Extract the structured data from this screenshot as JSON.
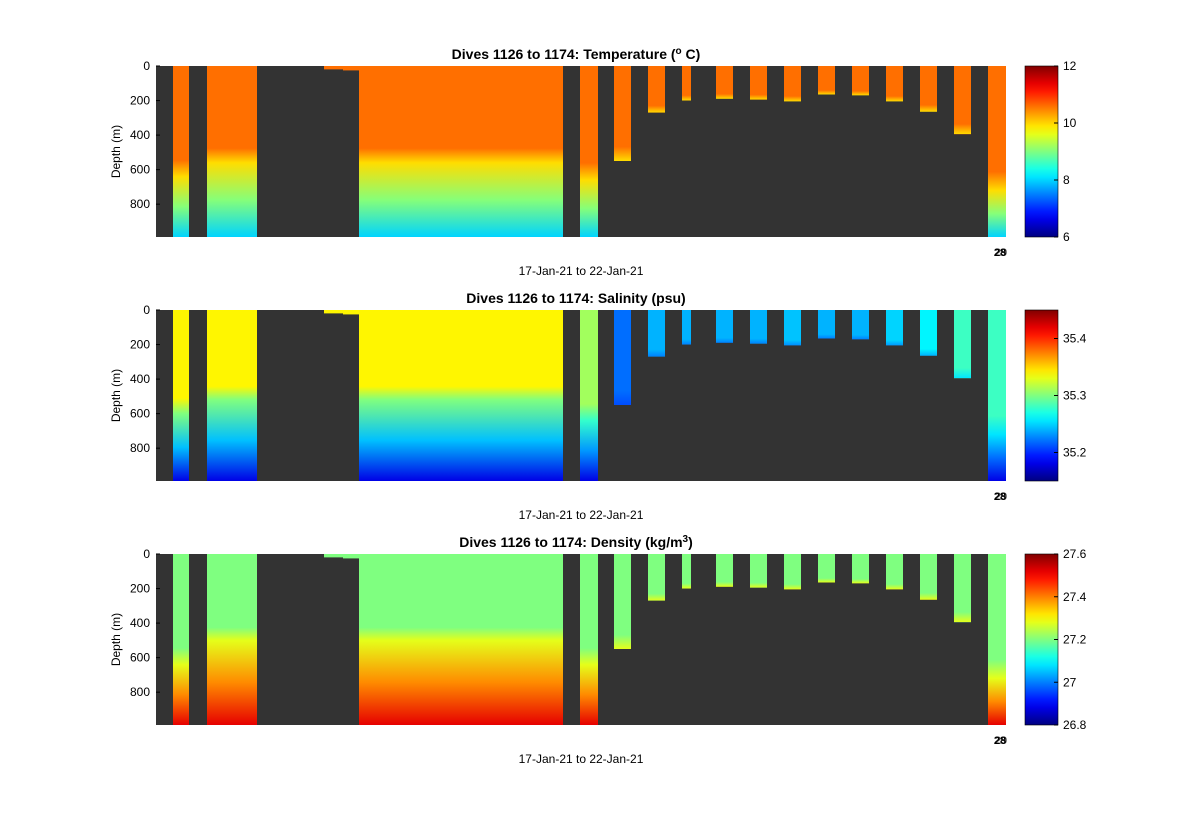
{
  "figure": {
    "background": "#ffffff",
    "axes_background": "#333333"
  },
  "chart_data": [
    {
      "type": "heatmap",
      "title": "Dives 1126 to 1174: Temperature (",
      "title_sup": "o",
      "title_tail": " C)",
      "xlabel": "17-Jan-21 to 22-Jan-21",
      "ylabel": "Depth (m)",
      "yticks": [
        "0",
        "200",
        "400",
        "600",
        "800"
      ],
      "ylim": [
        0,
        990
      ],
      "y_reversed": true,
      "x_tick_label": "28",
      "x_tick_overlap": "29",
      "colorbar": {
        "min": 6,
        "max": 12,
        "ticks": [
          "6",
          "8",
          "10",
          "12"
        ],
        "colormap": "jet"
      },
      "surface_value": 10.6,
      "bottom_value": 8.0,
      "profiles": [
        {
          "dive": 1126,
          "max_depth": 990,
          "transition_depth": 640
        },
        {
          "dive": 1127,
          "max_depth": 990,
          "transition_depth": 560
        },
        {
          "dive": 1128,
          "max_depth": 990,
          "transition_depth": 560
        },
        {
          "dive": 1129,
          "max_depth": 990,
          "transition_depth": 560
        },
        {
          "dive": 1130,
          "max_depth": 990,
          "transition_depth": 560
        },
        {
          "dive": 1131,
          "max_depth": 990,
          "transition_depth": 560
        },
        {
          "dive": 1132,
          "max_depth": 990,
          "transition_depth": 560
        },
        {
          "dive": 1133,
          "max_depth": 990,
          "transition_depth": 560
        },
        {
          "dive": 1134,
          "max_depth": 990,
          "transition_depth": 560
        },
        {
          "dive": 1135,
          "max_depth": 990,
          "transition_depth": 560
        },
        {
          "dive": 1136,
          "max_depth": 990,
          "transition_depth": 560
        },
        {
          "dive": 1137,
          "max_depth": 990,
          "transition_depth": 560
        },
        {
          "dive": 1138,
          "max_depth": 990,
          "transition_depth": 560
        },
        {
          "dive": 1139,
          "max_depth": 990,
          "transition_depth": 560
        },
        {
          "dive": 1140,
          "max_depth": 990,
          "transition_depth": 560
        },
        {
          "dive": 1141,
          "max_depth": 990,
          "transition_depth": 560
        },
        {
          "dive": 1142,
          "max_depth": 990,
          "transition_depth": 560
        },
        {
          "dive": 1143,
          "max_depth": 990,
          "transition_depth": 560
        },
        {
          "dive": 1144,
          "max_depth": 990,
          "transition_depth": 660
        },
        {
          "dive": 1145,
          "max_depth": 550,
          "transition_depth": 9999
        },
        {
          "dive": 1146,
          "max_depth": 270,
          "transition_depth": 9999
        },
        {
          "dive": 1147,
          "max_depth": 200,
          "transition_depth": 9999
        },
        {
          "dive": 1148,
          "max_depth": 190,
          "transition_depth": 9999
        },
        {
          "dive": 1149,
          "max_depth": 195,
          "transition_depth": 9999
        },
        {
          "dive": 1150,
          "max_depth": 205,
          "transition_depth": 9999
        },
        {
          "dive": 1151,
          "max_depth": 165,
          "transition_depth": 9999
        },
        {
          "dive": 1152,
          "max_depth": 170,
          "transition_depth": 9999
        },
        {
          "dive": 1153,
          "max_depth": 205,
          "transition_depth": 9999
        },
        {
          "dive": 1154,
          "max_depth": 265,
          "transition_depth": 9999
        },
        {
          "dive": 1155,
          "max_depth": 395,
          "transition_depth": 9999
        },
        {
          "dive": 1156,
          "max_depth": 990,
          "transition_depth": 720
        }
      ]
    },
    {
      "type": "heatmap",
      "title": "Dives 1126 to 1174: Salinity (psu)",
      "xlabel": "17-Jan-21 to 22-Jan-21",
      "ylabel": "Depth (m)",
      "yticks": [
        "0",
        "200",
        "400",
        "600",
        "800"
      ],
      "ylim": [
        0,
        990
      ],
      "y_reversed": true,
      "x_tick_label": "28",
      "x_tick_overlap": "29",
      "colorbar": {
        "min": 35.15,
        "max": 35.45,
        "ticks": [
          "35.2",
          "35.3",
          "35.4"
        ],
        "colormap": "jet"
      },
      "surface_value": 35.34,
      "bottom_value": 35.18,
      "profiles": [
        {
          "dive": 1126,
          "max_depth": 990,
          "transition_depth": 600,
          "surface_value": 35.34
        },
        {
          "dive": 1127,
          "max_depth": 990,
          "transition_depth": 520,
          "surface_value": 35.34
        },
        {
          "dive": 1128,
          "max_depth": 990,
          "transition_depth": 520,
          "surface_value": 35.34
        },
        {
          "dive": 1129,
          "max_depth": 990,
          "transition_depth": 520,
          "surface_value": 35.34
        },
        {
          "dive": 1130,
          "max_depth": 990,
          "transition_depth": 520,
          "surface_value": 35.34
        },
        {
          "dive": 1131,
          "max_depth": 990,
          "transition_depth": 520,
          "surface_value": 35.34
        },
        {
          "dive": 1132,
          "max_depth": 990,
          "transition_depth": 520,
          "surface_value": 35.34
        },
        {
          "dive": 1133,
          "max_depth": 990,
          "transition_depth": 520,
          "surface_value": 35.34
        },
        {
          "dive": 1134,
          "max_depth": 990,
          "transition_depth": 520,
          "surface_value": 35.34
        },
        {
          "dive": 1135,
          "max_depth": 990,
          "transition_depth": 520,
          "surface_value": 35.34
        },
        {
          "dive": 1136,
          "max_depth": 990,
          "transition_depth": 520,
          "surface_value": 35.34
        },
        {
          "dive": 1137,
          "max_depth": 990,
          "transition_depth": 520,
          "surface_value": 35.34
        },
        {
          "dive": 1138,
          "max_depth": 990,
          "transition_depth": 520,
          "surface_value": 35.34
        },
        {
          "dive": 1139,
          "max_depth": 990,
          "transition_depth": 520,
          "surface_value": 35.34
        },
        {
          "dive": 1140,
          "max_depth": 990,
          "transition_depth": 520,
          "surface_value": 35.34
        },
        {
          "dive": 1141,
          "max_depth": 990,
          "transition_depth": 520,
          "surface_value": 35.34
        },
        {
          "dive": 1142,
          "max_depth": 990,
          "transition_depth": 520,
          "surface_value": 35.34
        },
        {
          "dive": 1143,
          "max_depth": 990,
          "transition_depth": 520,
          "surface_value": 35.34
        },
        {
          "dive": 1144,
          "max_depth": 990,
          "transition_depth": 640,
          "surface_value": 35.31
        },
        {
          "dive": 1145,
          "max_depth": 550,
          "transition_depth": 9999,
          "surface_value": 35.22
        },
        {
          "dive": 1146,
          "max_depth": 270,
          "transition_depth": 9999,
          "surface_value": 35.24
        },
        {
          "dive": 1147,
          "max_depth": 200,
          "transition_depth": 9999,
          "surface_value": 35.24
        },
        {
          "dive": 1148,
          "max_depth": 190,
          "transition_depth": 9999,
          "surface_value": 35.24
        },
        {
          "dive": 1149,
          "max_depth": 195,
          "transition_depth": 9999,
          "surface_value": 35.24
        },
        {
          "dive": 1150,
          "max_depth": 205,
          "transition_depth": 9999,
          "surface_value": 35.245
        },
        {
          "dive": 1151,
          "max_depth": 165,
          "transition_depth": 9999,
          "surface_value": 35.24
        },
        {
          "dive": 1152,
          "max_depth": 170,
          "transition_depth": 9999,
          "surface_value": 35.24
        },
        {
          "dive": 1153,
          "max_depth": 205,
          "transition_depth": 9999,
          "surface_value": 35.25
        },
        {
          "dive": 1154,
          "max_depth": 265,
          "transition_depth": 9999,
          "surface_value": 35.26
        },
        {
          "dive": 1155,
          "max_depth": 395,
          "transition_depth": 9999,
          "surface_value": 35.28
        },
        {
          "dive": 1156,
          "max_depth": 990,
          "transition_depth": 720,
          "surface_value": 35.28
        }
      ]
    },
    {
      "type": "heatmap",
      "title": "Dives 1126 to 1174: Density (kg/m",
      "title_sup": "3",
      "title_tail": ")",
      "xlabel": "17-Jan-21 to 22-Jan-21",
      "ylabel": "Depth (m)",
      "yticks": [
        "0",
        "200",
        "400",
        "600",
        "800"
      ],
      "ylim": [
        0,
        990
      ],
      "y_reversed": true,
      "x_tick_label": "28",
      "x_tick_overlap": "29",
      "colorbar": {
        "min": 26.8,
        "max": 27.6,
        "ticks": [
          "26.8",
          "27",
          "27.2",
          "27.4",
          "27.6"
        ],
        "colormap": "jet"
      },
      "surface_value": 27.2,
      "bottom_value": 27.52,
      "profiles": [
        {
          "dive": 1126,
          "max_depth": 990,
          "transition_depth": 640
        },
        {
          "dive": 1127,
          "max_depth": 990,
          "transition_depth": 500
        },
        {
          "dive": 1128,
          "max_depth": 990,
          "transition_depth": 500
        },
        {
          "dive": 1129,
          "max_depth": 990,
          "transition_depth": 500
        },
        {
          "dive": 1130,
          "max_depth": 990,
          "transition_depth": 500
        },
        {
          "dive": 1131,
          "max_depth": 990,
          "transition_depth": 500
        },
        {
          "dive": 1132,
          "max_depth": 990,
          "transition_depth": 500
        },
        {
          "dive": 1133,
          "max_depth": 990,
          "transition_depth": 500
        },
        {
          "dive": 1134,
          "max_depth": 990,
          "transition_depth": 500
        },
        {
          "dive": 1135,
          "max_depth": 990,
          "transition_depth": 500
        },
        {
          "dive": 1136,
          "max_depth": 990,
          "transition_depth": 500
        },
        {
          "dive": 1137,
          "max_depth": 990,
          "transition_depth": 500
        },
        {
          "dive": 1138,
          "max_depth": 990,
          "transition_depth": 500
        },
        {
          "dive": 1139,
          "max_depth": 990,
          "transition_depth": 500
        },
        {
          "dive": 1140,
          "max_depth": 990,
          "transition_depth": 500
        },
        {
          "dive": 1141,
          "max_depth": 990,
          "transition_depth": 500
        },
        {
          "dive": 1142,
          "max_depth": 990,
          "transition_depth": 500
        },
        {
          "dive": 1143,
          "max_depth": 990,
          "transition_depth": 500
        },
        {
          "dive": 1144,
          "max_depth": 990,
          "transition_depth": 640
        },
        {
          "dive": 1145,
          "max_depth": 550,
          "transition_depth": 9999
        },
        {
          "dive": 1146,
          "max_depth": 270,
          "transition_depth": 9999
        },
        {
          "dive": 1147,
          "max_depth": 200,
          "transition_depth": 9999
        },
        {
          "dive": 1148,
          "max_depth": 190,
          "transition_depth": 9999
        },
        {
          "dive": 1149,
          "max_depth": 195,
          "transition_depth": 9999
        },
        {
          "dive": 1150,
          "max_depth": 205,
          "transition_depth": 9999
        },
        {
          "dive": 1151,
          "max_depth": 165,
          "transition_depth": 9999
        },
        {
          "dive": 1152,
          "max_depth": 170,
          "transition_depth": 9999
        },
        {
          "dive": 1153,
          "max_depth": 205,
          "transition_depth": 9999
        },
        {
          "dive": 1154,
          "max_depth": 265,
          "transition_depth": 9999
        },
        {
          "dive": 1155,
          "max_depth": 395,
          "transition_depth": 9999
        },
        {
          "dive": 1156,
          "max_depth": 990,
          "transition_depth": 720
        }
      ]
    }
  ]
}
